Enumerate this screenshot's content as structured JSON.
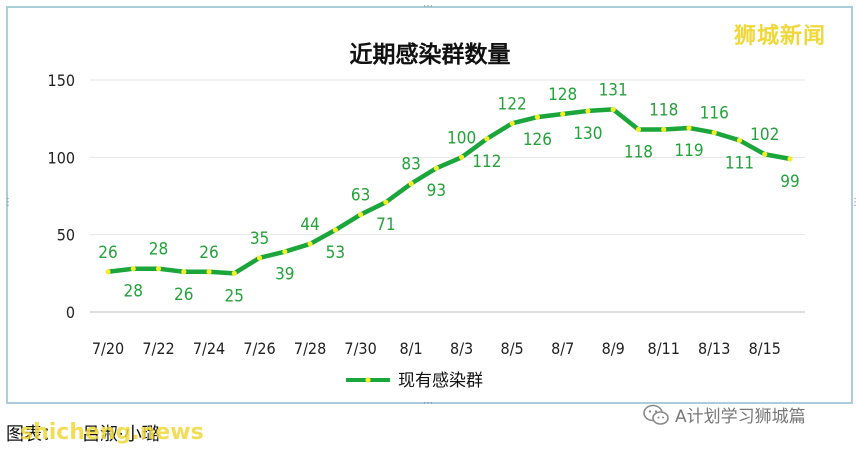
{
  "brand_text": "狮城新闻",
  "credit_text": "图表：",
  "credit_author": "吕淑·小璐",
  "site_text": "shicheng.news",
  "wechat_account": "A计划学习狮城篇",
  "chart_data": {
    "type": "line",
    "title": "近期感染群数量",
    "categories": [
      "7/20",
      "7/21",
      "7/22",
      "7/23",
      "7/24",
      "7/25",
      "7/26",
      "7/27",
      "7/28",
      "7/29",
      "7/30",
      "7/31",
      "8/1",
      "8/2",
      "8/3",
      "8/4",
      "8/5",
      "8/6",
      "8/7",
      "8/8",
      "8/9",
      "8/10",
      "8/11",
      "8/12",
      "8/13",
      "8/14",
      "8/15",
      "8/16"
    ],
    "x_tick_labels": [
      "7/20",
      "7/22",
      "7/24",
      "7/26",
      "7/28",
      "7/30",
      "8/1",
      "8/3",
      "8/5",
      "8/7",
      "8/9",
      "8/11",
      "8/13",
      "8/15"
    ],
    "series": [
      {
        "name": "现有感染群",
        "color": "#1aa63a",
        "marker_color": "#f2ee2e",
        "values": [
          26,
          28,
          28,
          26,
          26,
          25,
          35,
          39,
          44,
          53,
          63,
          71,
          83,
          93,
          100,
          112,
          122,
          126,
          128,
          130,
          131,
          118,
          118,
          119,
          116,
          111,
          102,
          99
        ]
      }
    ],
    "ylim": [
      0,
      150
    ],
    "y_ticks": [
      0,
      50,
      100,
      150
    ],
    "grid": true,
    "legend_position": "bottom"
  }
}
